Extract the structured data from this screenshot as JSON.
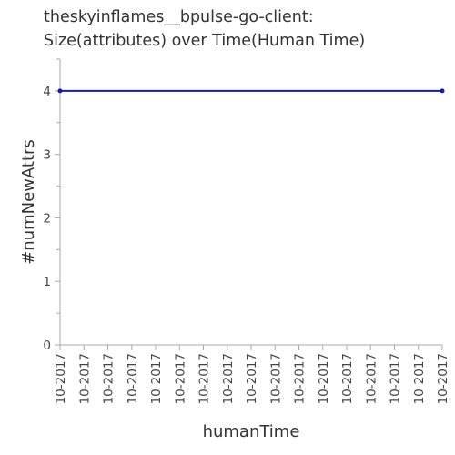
{
  "chart_data": {
    "type": "line",
    "title_line1": "theskyinflames__bpulse-go-client:",
    "title_line2": "Size(attributes) over Time(Human Time)",
    "xlabel": "humanTime",
    "ylabel": "#numNewAttrs",
    "ylim": [
      0,
      4.5
    ],
    "y_ticks": [
      "0",
      "1",
      "2",
      "3",
      "4"
    ],
    "x_tick_labels": [
      "10-2017",
      "10-2017",
      "10-2017",
      "10-2017",
      "10-2017",
      "10-2017",
      "10-2017",
      "10-2017",
      "10-2017",
      "10-2017",
      "10-2017",
      "10-2017",
      "10-2017",
      "10-2017",
      "10-2017",
      "10-2017",
      "10-2017"
    ],
    "series": [
      {
        "values": [
          4,
          4
        ]
      }
    ],
    "grid": false,
    "colors": {
      "series": "#1a1aa6",
      "axis": "#aaaaaa",
      "text": "#333333"
    }
  }
}
